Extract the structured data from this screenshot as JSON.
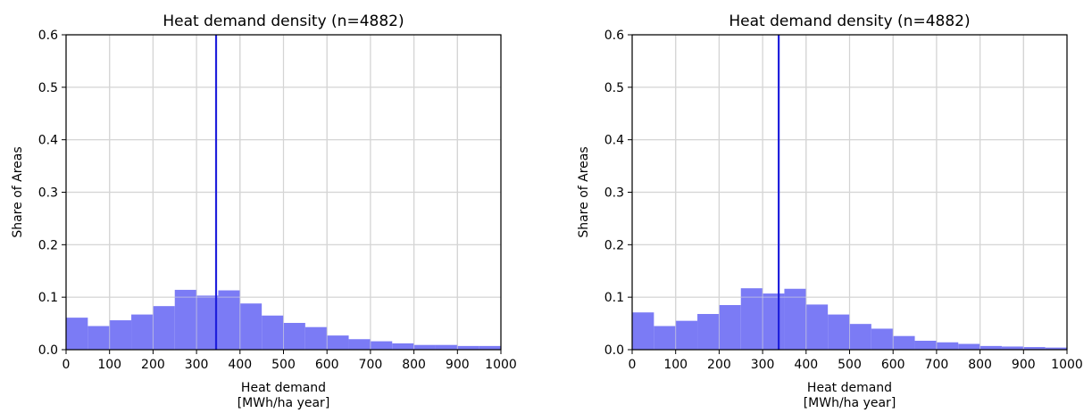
{
  "chart_data": [
    {
      "type": "bar",
      "title": "Heat demand density (n=4882)",
      "xlabel_line1": "Heat demand",
      "xlabel_line2": "[MWh/ha year]",
      "ylabel": "Share of Areas",
      "xlim": [
        0,
        1000
      ],
      "ylim": [
        0,
        0.6
      ],
      "xticks": [
        "0",
        "100",
        "200",
        "300",
        "400",
        "500",
        "600",
        "700",
        "800",
        "900",
        "1000"
      ],
      "yticks": [
        "0.0",
        "0.1",
        "0.2",
        "0.3",
        "0.4",
        "0.5",
        "0.6"
      ],
      "grid": true,
      "bin_width": 50,
      "bin_starts": [
        0,
        50,
        100,
        150,
        200,
        250,
        300,
        350,
        400,
        450,
        500,
        550,
        600,
        650,
        700,
        750,
        800,
        850,
        900,
        950
      ],
      "values": [
        0.061,
        0.045,
        0.056,
        0.067,
        0.083,
        0.114,
        0.103,
        0.113,
        0.088,
        0.065,
        0.051,
        0.043,
        0.027,
        0.02,
        0.016,
        0.012,
        0.009,
        0.009,
        0.007,
        0.007
      ],
      "vline": 345,
      "bar_color": "#7b7bf5",
      "vline_color": "#1f1fdc"
    },
    {
      "type": "bar",
      "title": "Heat demand density (n=4882)",
      "xlabel_line1": "Heat demand",
      "xlabel_line2": "[MWh/ha year]",
      "ylabel": "Share of Areas",
      "xlim": [
        0,
        1000
      ],
      "ylim": [
        0,
        0.6
      ],
      "xticks": [
        "0",
        "100",
        "200",
        "300",
        "400",
        "500",
        "600",
        "700",
        "800",
        "900",
        "1000"
      ],
      "yticks": [
        "0.0",
        "0.1",
        "0.2",
        "0.3",
        "0.4",
        "0.5",
        "0.6"
      ],
      "grid": true,
      "bin_width": 50,
      "bin_starts": [
        0,
        50,
        100,
        150,
        200,
        250,
        300,
        350,
        400,
        450,
        500,
        550,
        600,
        650,
        700,
        750,
        800,
        850,
        900,
        950
      ],
      "values": [
        0.071,
        0.045,
        0.055,
        0.068,
        0.085,
        0.117,
        0.107,
        0.116,
        0.086,
        0.067,
        0.049,
        0.04,
        0.026,
        0.017,
        0.014,
        0.011,
        0.007,
        0.006,
        0.005,
        0.004
      ],
      "vline": 337,
      "bar_color": "#7b7bf5",
      "vline_color": "#1f1fdc"
    }
  ]
}
